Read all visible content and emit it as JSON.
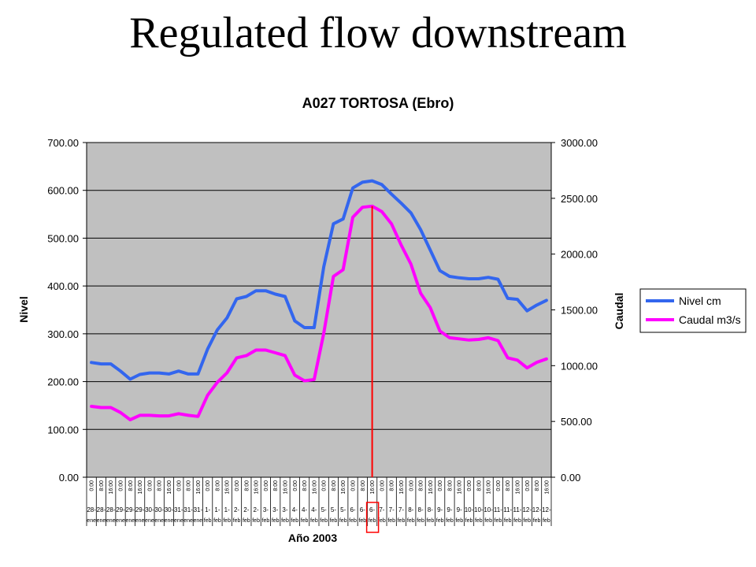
{
  "slide": {
    "title": "Regulated flow downstream"
  },
  "chart_data": {
    "type": "line",
    "title": "A027 TORTOSA (Ebro)",
    "xlabel": "Año 2003",
    "ylabel_left": "Nivel",
    "ylabel_right": "Caudal",
    "ylim_left": [
      0,
      700
    ],
    "ylim_right": [
      0,
      3000
    ],
    "yticks_left": [
      "0.00",
      "100.00",
      "200.00",
      "300.00",
      "400.00",
      "500.00",
      "600.00",
      "700.00"
    ],
    "yticks_right": [
      "0.00",
      "500.00",
      "1000.00",
      "1500.00",
      "2000.00",
      "2500.00",
      "3000.00"
    ],
    "grid": true,
    "legend": "right",
    "plot_background": "#c0c0c0",
    "x_times": [
      "0:00",
      "8:00",
      "16:00",
      "0:00",
      "8:00",
      "16:00",
      "0:00",
      "8:00",
      "16:00",
      "0:00",
      "8:00",
      "16:00",
      "0:00",
      "8:00",
      "16:00",
      "0:00",
      "8:00",
      "16:00",
      "0:00",
      "8:00",
      "16:00",
      "0:00",
      "8:00",
      "16:00",
      "0:00",
      "8:00",
      "16:00",
      "0:00",
      "8:00",
      "16:00",
      "0:00",
      "8:00",
      "16:00",
      "0:00",
      "8:00",
      "16:00",
      "0:00",
      "8:00",
      "16:00",
      "0:00",
      "8:00",
      "16:00",
      "0:00",
      "8:00",
      "16:00",
      "0:00",
      "8:00",
      "16:00"
    ],
    "x_days": [
      "28-",
      "28-",
      "28-",
      "29-",
      "29-",
      "29-",
      "30-",
      "30-",
      "30-",
      "31-",
      "31-",
      "31-",
      "1-",
      "1-",
      "1-",
      "2-",
      "2-",
      "2-",
      "3-",
      "3-",
      "3-",
      "4-",
      "4-",
      "4-",
      "5-",
      "5-",
      "5-",
      "6-",
      "6-",
      "6-",
      "7-",
      "7-",
      "7-",
      "8-",
      "8-",
      "8-",
      "9-",
      "9-",
      "9-",
      "10-",
      "10-",
      "10-",
      "11-",
      "11-",
      "11-",
      "12-",
      "12-",
      "12-"
    ],
    "x_months": [
      "ene",
      "ene",
      "ene",
      "ene",
      "ene",
      "ene",
      "ene",
      "ene",
      "ene",
      "ene",
      "ene",
      "ene",
      "feb",
      "feb",
      "feb",
      "feb",
      "feb",
      "feb",
      "feb",
      "feb",
      "feb",
      "feb",
      "feb",
      "feb",
      "feb",
      "feb",
      "feb",
      "feb",
      "feb",
      "feb",
      "feb",
      "feb",
      "feb",
      "feb",
      "feb",
      "feb",
      "feb",
      "feb",
      "feb",
      "feb",
      "feb",
      "feb",
      "feb",
      "feb",
      "feb",
      "feb",
      "feb",
      "feb"
    ],
    "highlight_index": 29,
    "series": [
      {
        "name": "Nivel cm",
        "axis": "left",
        "color": "#3366ee",
        "values": [
          240,
          237,
          237,
          222,
          205,
          215,
          218,
          218,
          216,
          222,
          216,
          216,
          268,
          308,
          333,
          373,
          378,
          390,
          390,
          383,
          378,
          327,
          313,
          313,
          440,
          530,
          540,
          605,
          617,
          620,
          612,
          592,
          573,
          553,
          518,
          475,
          432,
          420,
          417,
          415,
          415,
          418,
          414,
          374,
          372,
          348,
          360,
          370
        ]
      },
      {
        "name": "Caudal m3/s",
        "axis": "right",
        "color": "#ff00ff",
        "values": [
          635,
          625,
          625,
          580,
          515,
          555,
          555,
          550,
          550,
          570,
          555,
          545,
          735,
          850,
          935,
          1070,
          1090,
          1140,
          1140,
          1115,
          1090,
          915,
          865,
          875,
          1290,
          1800,
          1860,
          2330,
          2420,
          2430,
          2380,
          2270,
          2080,
          1910,
          1650,
          1520,
          1310,
          1250,
          1240,
          1230,
          1235,
          1250,
          1225,
          1070,
          1050,
          980,
          1030,
          1060
        ]
      }
    ]
  }
}
